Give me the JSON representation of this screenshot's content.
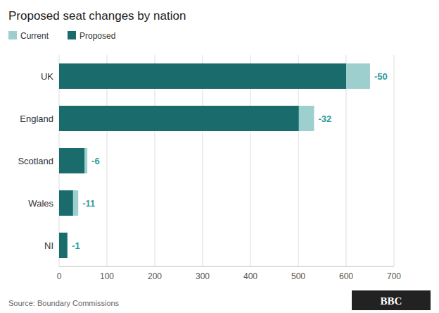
{
  "chart_data": {
    "type": "bar",
    "orientation": "horizontal",
    "title": "Proposed seat changes by nation",
    "categories": [
      "UK",
      "England",
      "Scotland",
      "Wales",
      "NI"
    ],
    "series": [
      {
        "name": "Current",
        "color": "#9dcfcf",
        "values": [
          650,
          533,
          59,
          40,
          18
        ]
      },
      {
        "name": "Proposed",
        "color": "#1a6b6b",
        "values": [
          600,
          501,
          53,
          29,
          17
        ]
      }
    ],
    "annotations": [
      "-50",
      "-32",
      "-6",
      "-11",
      "-1"
    ],
    "xlim": [
      0,
      700
    ],
    "xticks": [
      0,
      100,
      200,
      300,
      400,
      500,
      600,
      700
    ],
    "grid": true,
    "legend": "top",
    "source": "Source: Boundary Commissions",
    "logo": "BBC"
  }
}
